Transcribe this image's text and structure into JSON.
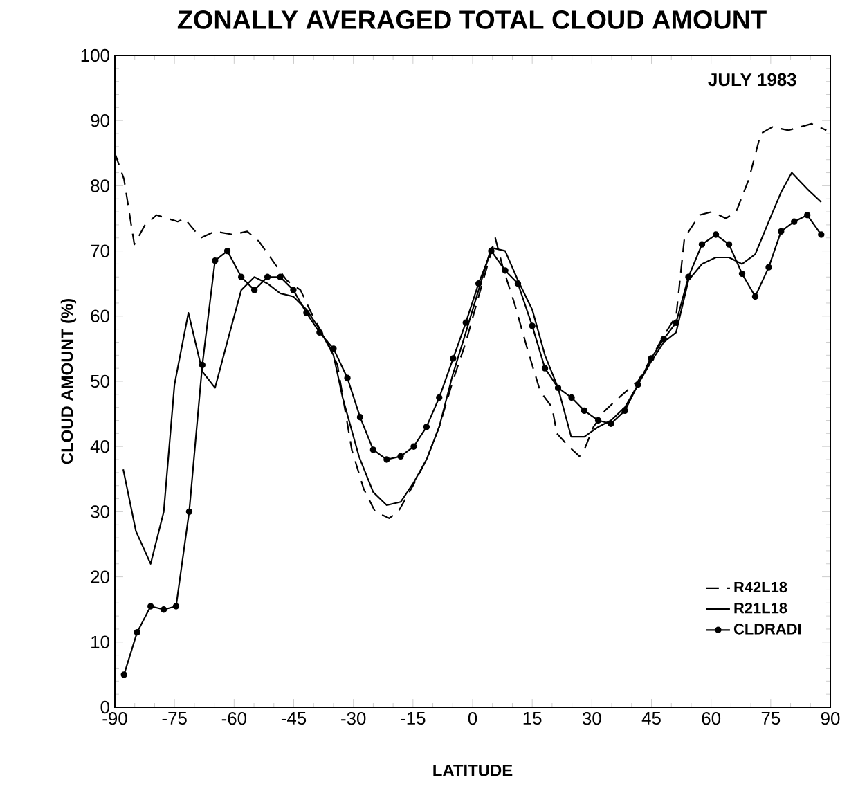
{
  "chart_data": {
    "type": "line",
    "title": "ZONALLY AVERAGED TOTAL CLOUD AMOUNT",
    "xlabel": "LATITUDE",
    "ylabel": "CLOUD AMOUNT  (%)",
    "annotations": [
      "JULY 1983"
    ],
    "xlim": [
      -90,
      90
    ],
    "ylim": [
      0,
      100
    ],
    "xticks": [
      -90,
      -75,
      -60,
      -45,
      -30,
      -15,
      0,
      15,
      30,
      45,
      60,
      75,
      90
    ],
    "yticks": [
      0,
      10,
      20,
      30,
      40,
      50,
      60,
      70,
      80,
      90,
      100
    ],
    "legend": "bottom right",
    "grid": false,
    "series": [
      {
        "name": "R42L18",
        "color": "#000000",
        "line_style": "dashed",
        "marker": "none",
        "x": [
          -90,
          -87.7,
          -85.1,
          -82.4,
          -79.5,
          -74.2,
          -72.5,
          -68.4,
          -64.8,
          -60.2,
          -56.7,
          -53.8,
          -50.3,
          -46.8,
          -43.3,
          -39.8,
          -36.5,
          -34,
          -30.4,
          -27.4,
          -24.5,
          -21,
          -18.7,
          -15,
          -11.6,
          -8.4,
          -5,
          -1.7,
          1.5,
          5.7,
          7.6,
          10.5,
          14,
          17,
          20,
          21.2,
          24.2,
          26.9,
          28.1,
          30.4,
          33.3,
          36.8,
          41.6,
          44.9,
          48.1,
          51.2,
          53.3,
          57.1,
          60.2,
          63.7,
          66.3,
          69.5,
          72.5,
          75.4,
          79.5,
          82.3,
          85.3,
          89
        ],
        "values": [
          85,
          81,
          71,
          74,
          75.5,
          74.5,
          75,
          72,
          73,
          72.5,
          73,
          71.5,
          68.5,
          65.5,
          64,
          59.5,
          56,
          52.5,
          39.5,
          33.5,
          30,
          29,
          30,
          34,
          38,
          43,
          50,
          56,
          63,
          72,
          67.5,
          62,
          54.5,
          48.5,
          46,
          42,
          40,
          38.5,
          39.5,
          43,
          45.5,
          47.5,
          50,
          53.5,
          57,
          60,
          72,
          75.5,
          76,
          75,
          76,
          81,
          88,
          89,
          88.5,
          89,
          89.5,
          88.5
        ]
      },
      {
        "name": "R21L18",
        "color": "#000000",
        "line_style": "solid",
        "marker": "none",
        "x": [
          -87.9,
          -84.7,
          -81,
          -77.7,
          -75,
          -71.5,
          -68,
          -64.8,
          -61.3,
          -58.2,
          -54.9,
          -51.6,
          -48.4,
          -45.1,
          -41.8,
          -38.5,
          -35,
          -32.7,
          -28.6,
          -25,
          -21.6,
          -18.1,
          -14.8,
          -11.6,
          -8.4,
          -5,
          -1.7,
          1.5,
          4.7,
          8.2,
          11.4,
          15,
          18.2,
          21.5,
          24.8,
          28.1,
          31.6,
          34.8,
          38.3,
          41.6,
          44.9,
          48.1,
          51.2,
          54.3,
          57.7,
          61.2,
          64.5,
          67.8,
          71.1,
          74.5,
          77.6,
          80.3,
          84.2,
          87.7
        ],
        "values": [
          36.5,
          27,
          22,
          30,
          49.5,
          60.5,
          51.5,
          49,
          57,
          64,
          66,
          65,
          63.5,
          63,
          61,
          58,
          54,
          47.5,
          38.5,
          33,
          31,
          31.5,
          34.5,
          38,
          43,
          51,
          57.5,
          64,
          70.5,
          70,
          65.5,
          61,
          54,
          49,
          41.5,
          41.5,
          43,
          44,
          46,
          49.5,
          53,
          56,
          57.5,
          65.5,
          68,
          69,
          69,
          68,
          69.5,
          74.5,
          79,
          82,
          79.5,
          77.5
        ]
      },
      {
        "name": "CLDRADI",
        "color": "#000000",
        "line_style": "solid",
        "marker": "circle",
        "x": [
          -87.7,
          -84.4,
          -81,
          -77.7,
          -74.6,
          -71.3,
          -68,
          -64.8,
          -61.7,
          -58.2,
          -54.9,
          -51.6,
          -48.4,
          -45.1,
          -41.8,
          -38.5,
          -35,
          -31.5,
          -28.3,
          -25,
          -21.6,
          -18.1,
          -14.8,
          -11.6,
          -8.4,
          -4.9,
          -1.7,
          1.5,
          4.7,
          8.2,
          11.4,
          15,
          18.2,
          21.5,
          24.9,
          28.1,
          31.6,
          34.8,
          38.3,
          41.6,
          44.9,
          48.1,
          51.2,
          54.3,
          57.7,
          61.2,
          64.5,
          67.8,
          71.1,
          74.5,
          77.6,
          80.9,
          84.2,
          87.7
        ],
        "values": [
          5,
          11.5,
          15.5,
          15,
          15.5,
          30,
          52.5,
          68.5,
          70,
          66,
          64,
          66,
          66,
          64,
          60.5,
          57.5,
          55,
          50.5,
          44.5,
          39.5,
          38,
          38.5,
          40,
          43,
          47.5,
          53.5,
          59,
          65,
          70,
          67,
          65,
          58.5,
          52,
          49,
          47.5,
          45.5,
          44,
          43.5,
          45.5,
          49.5,
          53.5,
          56.5,
          59,
          66,
          71,
          72.5,
          71,
          66.5,
          63,
          67.5,
          73,
          74.5,
          75.5,
          72.5
        ]
      }
    ]
  }
}
